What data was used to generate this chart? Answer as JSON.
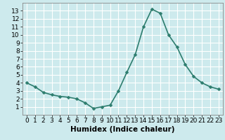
{
  "x": [
    0,
    1,
    2,
    3,
    4,
    5,
    6,
    7,
    8,
    9,
    10,
    11,
    12,
    13,
    14,
    15,
    16,
    17,
    18,
    19,
    20,
    21,
    22,
    23
  ],
  "y": [
    4.0,
    3.5,
    2.8,
    2.5,
    2.3,
    2.2,
    2.0,
    1.5,
    0.8,
    1.0,
    1.2,
    3.0,
    5.3,
    7.5,
    11.0,
    13.2,
    12.7,
    10.0,
    8.5,
    6.3,
    4.8,
    4.0,
    3.5,
    3.2
  ],
  "xlabel": "Humidex (Indice chaleur)",
  "ylabel": "",
  "xlim": [
    -0.5,
    23.5
  ],
  "ylim": [
    0.0,
    14.0
  ],
  "yticks": [
    1,
    2,
    3,
    4,
    5,
    6,
    7,
    8,
    9,
    10,
    11,
    12,
    13
  ],
  "xticks": [
    0,
    1,
    2,
    3,
    4,
    5,
    6,
    7,
    8,
    9,
    10,
    11,
    12,
    13,
    14,
    15,
    16,
    17,
    18,
    19,
    20,
    21,
    22,
    23
  ],
  "line_color": "#2d7d6e",
  "marker": "D",
  "marker_size": 2.5,
  "bg_color": "#cdeaed",
  "grid_color": "#ffffff",
  "font_color": "#000000",
  "xlabel_fontsize": 7.5,
  "tick_fontsize": 6.5,
  "line_width": 1.2
}
